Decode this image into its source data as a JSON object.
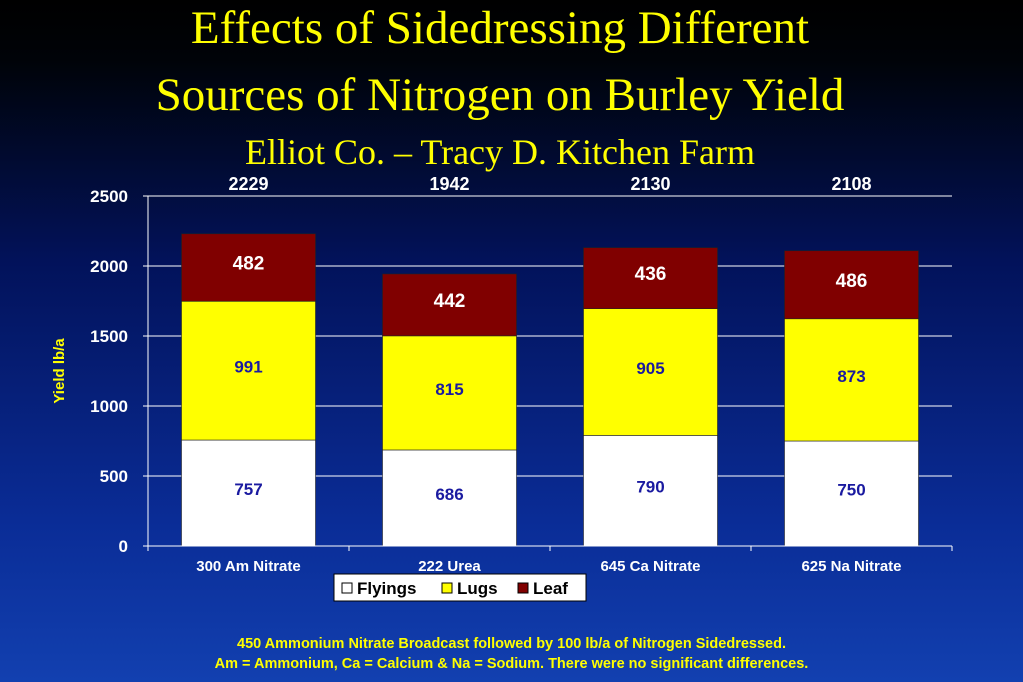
{
  "title_line1": "Effects of Sidedressing Different",
  "title_line2": "Sources of Nitrogen on Burley Yield",
  "subtitle": "Elliot Co. – Tracy D. Kitchen Farm",
  "footnote_line1": "450 Ammonium Nitrate Broadcast followed by 100 lb/a of Nitrogen Sidedressed.",
  "footnote_line2": "Am = Ammonium, Ca = Calcium & Na = Sodium.  There were no significant differences.",
  "colors": {
    "title": "#ffff00",
    "flyings": "#ffffff",
    "lugs": "#ffff00",
    "leaf": "#800000",
    "axis_text": "#ffffff",
    "ylabel": "#ffff00"
  },
  "chart_data": {
    "type": "bar",
    "stacked": true,
    "categories": [
      "300 Am Nitrate",
      "222 Urea",
      "645 Ca Nitrate",
      "625 Na Nitrate"
    ],
    "series": [
      {
        "name": "Flyings",
        "values": [
          757,
          686,
          790,
          750
        ],
        "color": "#ffffff",
        "label_color": "#1a1aa0"
      },
      {
        "name": "Lugs",
        "values": [
          991,
          815,
          905,
          873
        ],
        "color": "#ffff00",
        "label_color": "#1a1aa0"
      },
      {
        "name": "Leaf",
        "values": [
          482,
          442,
          436,
          486
        ],
        "color": "#800000",
        "label_color": "#ffffff"
      }
    ],
    "totals": [
      "2229",
      "1942",
      "2130",
      "2108"
    ],
    "ylabel": "Yield lb/a",
    "xlabel": "",
    "ylim": [
      0,
      2500
    ],
    "yticks": [
      "0",
      "500",
      "1000",
      "1500",
      "2000",
      "2500"
    ],
    "grid": true,
    "legend_position": "bottom"
  }
}
